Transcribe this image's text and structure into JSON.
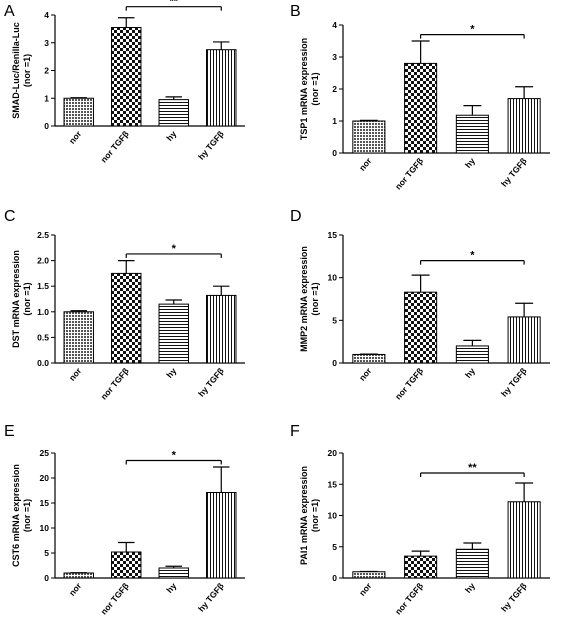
{
  "chart_data": [
    {
      "panel": "A",
      "type": "bar",
      "categories": [
        "nor",
        "nor TGFβ",
        "hy",
        "hy TGFβ"
      ],
      "values": [
        1.0,
        3.55,
        0.95,
        2.75
      ],
      "errors": [
        0.02,
        0.35,
        0.1,
        0.28
      ],
      "ylabel_lines": [
        "SMAD-Luc/Renilla-Luc",
        "(nor =1)"
      ],
      "ylim": [
        0,
        4
      ],
      "yticks": [
        0,
        1,
        2,
        3,
        4
      ],
      "ytick_labels": [
        "0",
        "1",
        "2",
        "3",
        "4"
      ],
      "significance": {
        "from": 1,
        "to": 3,
        "label": "**",
        "y": 4.3
      }
    },
    {
      "panel": "B",
      "type": "bar",
      "categories": [
        "nor",
        "nor TGFβ",
        "hy",
        "hy TGFβ"
      ],
      "values": [
        1.0,
        2.8,
        1.18,
        1.7
      ],
      "errors": [
        0.02,
        0.7,
        0.3,
        0.37
      ],
      "ylabel_lines": [
        "TSP1 mRNA expression",
        "(nor =1)"
      ],
      "ylim": [
        0,
        4
      ],
      "yticks": [
        0,
        1,
        2,
        3,
        4
      ],
      "ytick_labels": [
        "0",
        "1",
        "2",
        "3",
        "4"
      ],
      "significance": {
        "from": 1,
        "to": 3,
        "label": "*",
        "y": 3.7
      }
    },
    {
      "panel": "C",
      "type": "bar",
      "categories": [
        "nor",
        "nor TGFβ",
        "hy",
        "hy TGFβ"
      ],
      "values": [
        1.0,
        1.75,
        1.15,
        1.32
      ],
      "errors": [
        0.02,
        0.25,
        0.08,
        0.18
      ],
      "ylabel_lines": [
        "DST mRNA expression",
        "(nor =1)"
      ],
      "ylim": [
        0,
        2.5
      ],
      "yticks": [
        0,
        0.5,
        1,
        1.5,
        2,
        2.5
      ],
      "ytick_labels": [
        "0.0",
        "0.5",
        "1.0",
        "1.5",
        "2.0",
        "2.5"
      ],
      "significance": {
        "from": 1,
        "to": 3,
        "label": "*",
        "y": 2.13
      }
    },
    {
      "panel": "D",
      "type": "bar",
      "categories": [
        "nor",
        "nor TGFβ",
        "hy",
        "hy TGFβ"
      ],
      "values": [
        1.0,
        8.3,
        2.0,
        5.4
      ],
      "errors": [
        0.05,
        2.0,
        0.65,
        1.6
      ],
      "ylabel_lines": [
        "MMP2 mRNA expression",
        "(nor =1)"
      ],
      "ylim": [
        0,
        15
      ],
      "yticks": [
        0,
        5,
        10,
        15
      ],
      "ytick_labels": [
        "0",
        "5",
        "10",
        "15"
      ],
      "significance": {
        "from": 1,
        "to": 3,
        "label": "*",
        "y": 12.0
      }
    },
    {
      "panel": "E",
      "type": "bar",
      "categories": [
        "nor",
        "nor TGFβ",
        "hy",
        "hy TGFβ"
      ],
      "values": [
        1.0,
        5.2,
        2.0,
        17.1
      ],
      "errors": [
        0.05,
        1.9,
        0.35,
        5.1
      ],
      "ylabel_lines": [
        "CST6 mRNA expression",
        "(nor =1)"
      ],
      "ylim": [
        0,
        25
      ],
      "yticks": [
        0,
        5,
        10,
        15,
        20,
        25
      ],
      "ytick_labels": [
        "0",
        "5",
        "10",
        "15",
        "20",
        "25"
      ],
      "significance": {
        "from": 1,
        "to": 3,
        "label": "*",
        "y": 23.5
      }
    },
    {
      "panel": "F",
      "type": "bar",
      "categories": [
        "nor",
        "nor TGFβ",
        "hy",
        "hy TGFβ"
      ],
      "values": [
        1.0,
        3.5,
        4.6,
        12.2
      ],
      "errors": [
        0.05,
        0.8,
        1.0,
        3.0
      ],
      "ylabel_lines": [
        "PAI1 mRNA expression",
        "(nor =1)"
      ],
      "ylim": [
        0,
        20
      ],
      "yticks": [
        0,
        5,
        10,
        15,
        20
      ],
      "ytick_labels": [
        "0",
        "5",
        "10",
        "15",
        "20"
      ],
      "significance": {
        "from": 1,
        "to": 3,
        "label": "**",
        "y": 16.8
      }
    }
  ]
}
